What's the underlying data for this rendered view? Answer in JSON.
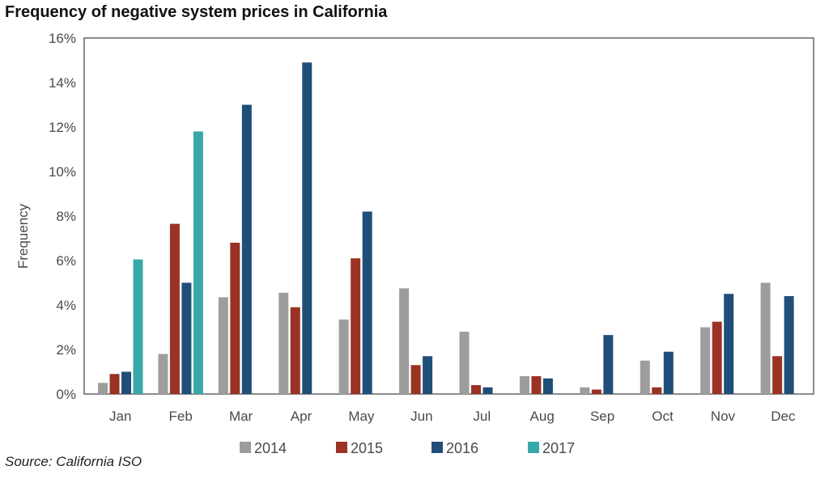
{
  "chart_data": {
    "type": "bar",
    "title": "Frequency of negative system prices in California",
    "xlabel": "",
    "ylabel": "Frequency",
    "ylim": [
      0,
      16
    ],
    "yticks": [
      "0%",
      "2%",
      "4%",
      "6%",
      "8%",
      "10%",
      "12%",
      "14%",
      "16%"
    ],
    "grid": false,
    "legend_position": "bottom",
    "categories": [
      "Jan",
      "Feb",
      "Mar",
      "Apr",
      "May",
      "Jun",
      "Jul",
      "Aug",
      "Sep",
      "Oct",
      "Nov",
      "Dec"
    ],
    "series": [
      {
        "name": "2014",
        "color": "#9d9d9d",
        "values": [
          0.5,
          1.8,
          4.35,
          4.55,
          3.35,
          4.75,
          2.8,
          0.8,
          0.3,
          1.5,
          3.0,
          5.0
        ]
      },
      {
        "name": "2015",
        "color": "#9a3324",
        "values": [
          0.9,
          7.65,
          6.8,
          3.9,
          6.1,
          1.3,
          0.4,
          0.8,
          0.2,
          0.3,
          3.25,
          1.7
        ]
      },
      {
        "name": "2016",
        "color": "#1f4e79",
        "values": [
          1.0,
          5.0,
          13.0,
          14.9,
          8.2,
          1.7,
          0.3,
          0.7,
          2.65,
          1.9,
          4.5,
          4.4
        ]
      },
      {
        "name": "2017",
        "color": "#3aa8a8",
        "values": [
          6.05,
          11.8,
          null,
          null,
          null,
          null,
          null,
          null,
          null,
          null,
          null,
          null
        ]
      }
    ]
  },
  "source": "Source: California ISO"
}
